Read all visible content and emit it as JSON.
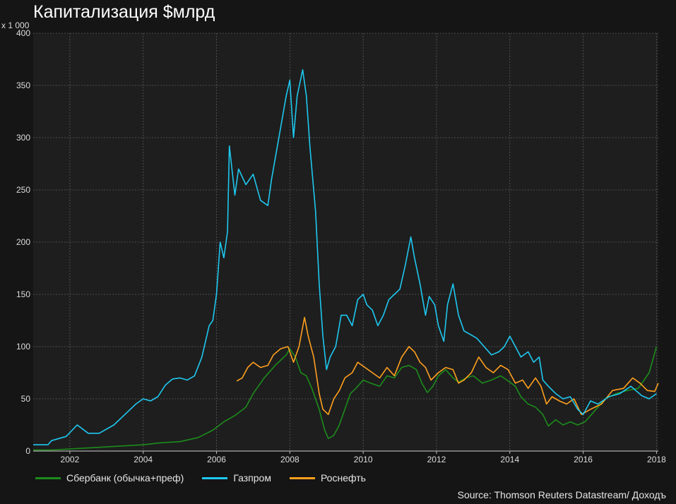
{
  "title": "Капитализация $млрд",
  "multiplier": "x 1 000",
  "source": "Source: Thomson Reuters Datastream/ Доходъ",
  "colors": {
    "background": "#151515",
    "plot": "#1e1e1e",
    "grid": "#5a5a5a"
  },
  "chart_data": {
    "type": "line",
    "title": "Капитализация $млрд",
    "ylim": [
      0,
      400
    ],
    "xlim": [
      2001.0,
      2018.05
    ],
    "y_ticks": [
      0,
      50,
      100,
      150,
      200,
      250,
      300,
      350,
      400
    ],
    "x_ticks": [
      2002,
      2004,
      2006,
      2008,
      2010,
      2012,
      2014,
      2016,
      2018
    ],
    "grid": true,
    "legend_position": "bottom",
    "series": [
      {
        "name": "Сбербанк (обычка+преф)",
        "color": "#1c8c1c",
        "x": [
          2001.0,
          2001.5,
          2002.0,
          2002.5,
          2003.0,
          2003.5,
          2004.0,
          2004.5,
          2005.0,
          2005.5,
          2005.9,
          2006.2,
          2006.5,
          2006.8,
          2007.0,
          2007.3,
          2007.6,
          2007.9,
          2008.0,
          2008.15,
          2008.3,
          2008.45,
          2008.6,
          2008.8,
          2008.95,
          2009.05,
          2009.2,
          2009.35,
          2009.5,
          2009.65,
          2009.8,
          2010.0,
          2010.2,
          2010.45,
          2010.65,
          2010.85,
          2011.05,
          2011.25,
          2011.45,
          2011.6,
          2011.75,
          2011.9,
          2012.05,
          2012.25,
          2012.45,
          2012.6,
          2012.8,
          2013.0,
          2013.25,
          2013.5,
          2013.75,
          2014.0,
          2014.15,
          2014.3,
          2014.5,
          2014.7,
          2014.9,
          2015.05,
          2015.25,
          2015.45,
          2015.65,
          2015.85,
          2016.05,
          2016.3,
          2016.6,
          2016.9,
          2017.2,
          2017.5,
          2017.8,
          2018.0
        ],
        "values": [
          1,
          1,
          2,
          3,
          4,
          5,
          6,
          8,
          9,
          13,
          20,
          28,
          34,
          42,
          55,
          70,
          82,
          92,
          98,
          90,
          75,
          72,
          60,
          40,
          20,
          12,
          15,
          25,
          40,
          55,
          60,
          68,
          65,
          62,
          72,
          70,
          80,
          82,
          78,
          65,
          56,
          62,
          72,
          78,
          70,
          66,
          70,
          72,
          65,
          68,
          72,
          66,
          62,
          52,
          45,
          42,
          35,
          24,
          30,
          25,
          28,
          25,
          28,
          38,
          50,
          55,
          58,
          60,
          75,
          100
        ]
      },
      {
        "name": "Газпром",
        "color": "#1ec8f0",
        "x": [
          2001.0,
          2001.4,
          2001.5,
          2001.9,
          2002.2,
          2002.5,
          2002.8,
          2003.2,
          2003.5,
          2003.8,
          2004.0,
          2004.2,
          2004.4,
          2004.6,
          2004.8,
          2005.0,
          2005.2,
          2005.4,
          2005.6,
          2005.8,
          2005.9,
          2006.0,
          2006.1,
          2006.2,
          2006.3,
          2006.35,
          2006.5,
          2006.6,
          2006.8,
          2007.0,
          2007.2,
          2007.4,
          2007.5,
          2007.7,
          2007.9,
          2008.0,
          2008.1,
          2008.2,
          2008.35,
          2008.45,
          2008.55,
          2008.7,
          2008.8,
          2008.9,
          2009.0,
          2009.1,
          2009.25,
          2009.4,
          2009.55,
          2009.7,
          2009.85,
          2010.0,
          2010.1,
          2010.25,
          2010.4,
          2010.55,
          2010.7,
          2010.85,
          2011.0,
          2011.15,
          2011.3,
          2011.4,
          2011.55,
          2011.7,
          2011.8,
          2011.95,
          2012.05,
          2012.2,
          2012.3,
          2012.45,
          2012.6,
          2012.75,
          2012.9,
          2013.1,
          2013.3,
          2013.5,
          2013.7,
          2013.85,
          2014.0,
          2014.15,
          2014.3,
          2014.5,
          2014.65,
          2014.8,
          2014.9,
          2015.05,
          2015.25,
          2015.45,
          2015.65,
          2015.85,
          2016.0,
          2016.2,
          2016.4,
          2016.7,
          2017.0,
          2017.3,
          2017.6,
          2017.8,
          2018.0
        ],
        "values": [
          6,
          6,
          10,
          14,
          25,
          17,
          17,
          25,
          35,
          45,
          50,
          48,
          52,
          63,
          69,
          70,
          68,
          72,
          90,
          120,
          125,
          150,
          200,
          185,
          210,
          292,
          245,
          270,
          255,
          265,
          240,
          235,
          260,
          300,
          340,
          355,
          300,
          340,
          365,
          340,
          290,
          230,
          160,
          110,
          78,
          90,
          100,
          130,
          130,
          120,
          145,
          150,
          140,
          135,
          120,
          130,
          145,
          150,
          155,
          178,
          205,
          185,
          160,
          130,
          148,
          140,
          120,
          105,
          140,
          160,
          130,
          115,
          112,
          108,
          100,
          92,
          95,
          100,
          110,
          100,
          90,
          95,
          85,
          90,
          68,
          62,
          55,
          50,
          52,
          40,
          35,
          48,
          45,
          52,
          55,
          62,
          53,
          50,
          55
        ]
      },
      {
        "name": "Роснефть",
        "color": "#ffa01e",
        "x": [
          2006.55,
          2006.7,
          2006.85,
          2007.0,
          2007.2,
          2007.4,
          2007.55,
          2007.75,
          2007.95,
          2008.1,
          2008.25,
          2008.4,
          2008.5,
          2008.65,
          2008.8,
          2008.9,
          2009.05,
          2009.2,
          2009.35,
          2009.5,
          2009.7,
          2009.85,
          2010.05,
          2010.25,
          2010.45,
          2010.65,
          2010.85,
          2011.05,
          2011.25,
          2011.4,
          2011.55,
          2011.7,
          2011.85,
          2012.05,
          2012.25,
          2012.45,
          2012.6,
          2012.75,
          2012.95,
          2013.15,
          2013.35,
          2013.55,
          2013.75,
          2013.95,
          2014.15,
          2014.35,
          2014.5,
          2014.7,
          2014.85,
          2015.0,
          2015.15,
          2015.35,
          2015.55,
          2015.75,
          2015.95,
          2016.2,
          2016.5,
          2016.8,
          2017.1,
          2017.35,
          2017.55,
          2017.75,
          2017.95,
          2018.05
        ],
        "values": [
          67,
          70,
          80,
          85,
          80,
          82,
          92,
          98,
          100,
          85,
          100,
          128,
          110,
          90,
          55,
          40,
          35,
          50,
          58,
          70,
          75,
          85,
          80,
          75,
          70,
          80,
          72,
          90,
          100,
          95,
          85,
          80,
          68,
          75,
          80,
          78,
          65,
          68,
          75,
          90,
          80,
          75,
          82,
          78,
          65,
          68,
          60,
          70,
          62,
          45,
          52,
          48,
          45,
          50,
          35,
          40,
          45,
          58,
          60,
          70,
          65,
          58,
          57,
          65
        ]
      }
    ]
  }
}
